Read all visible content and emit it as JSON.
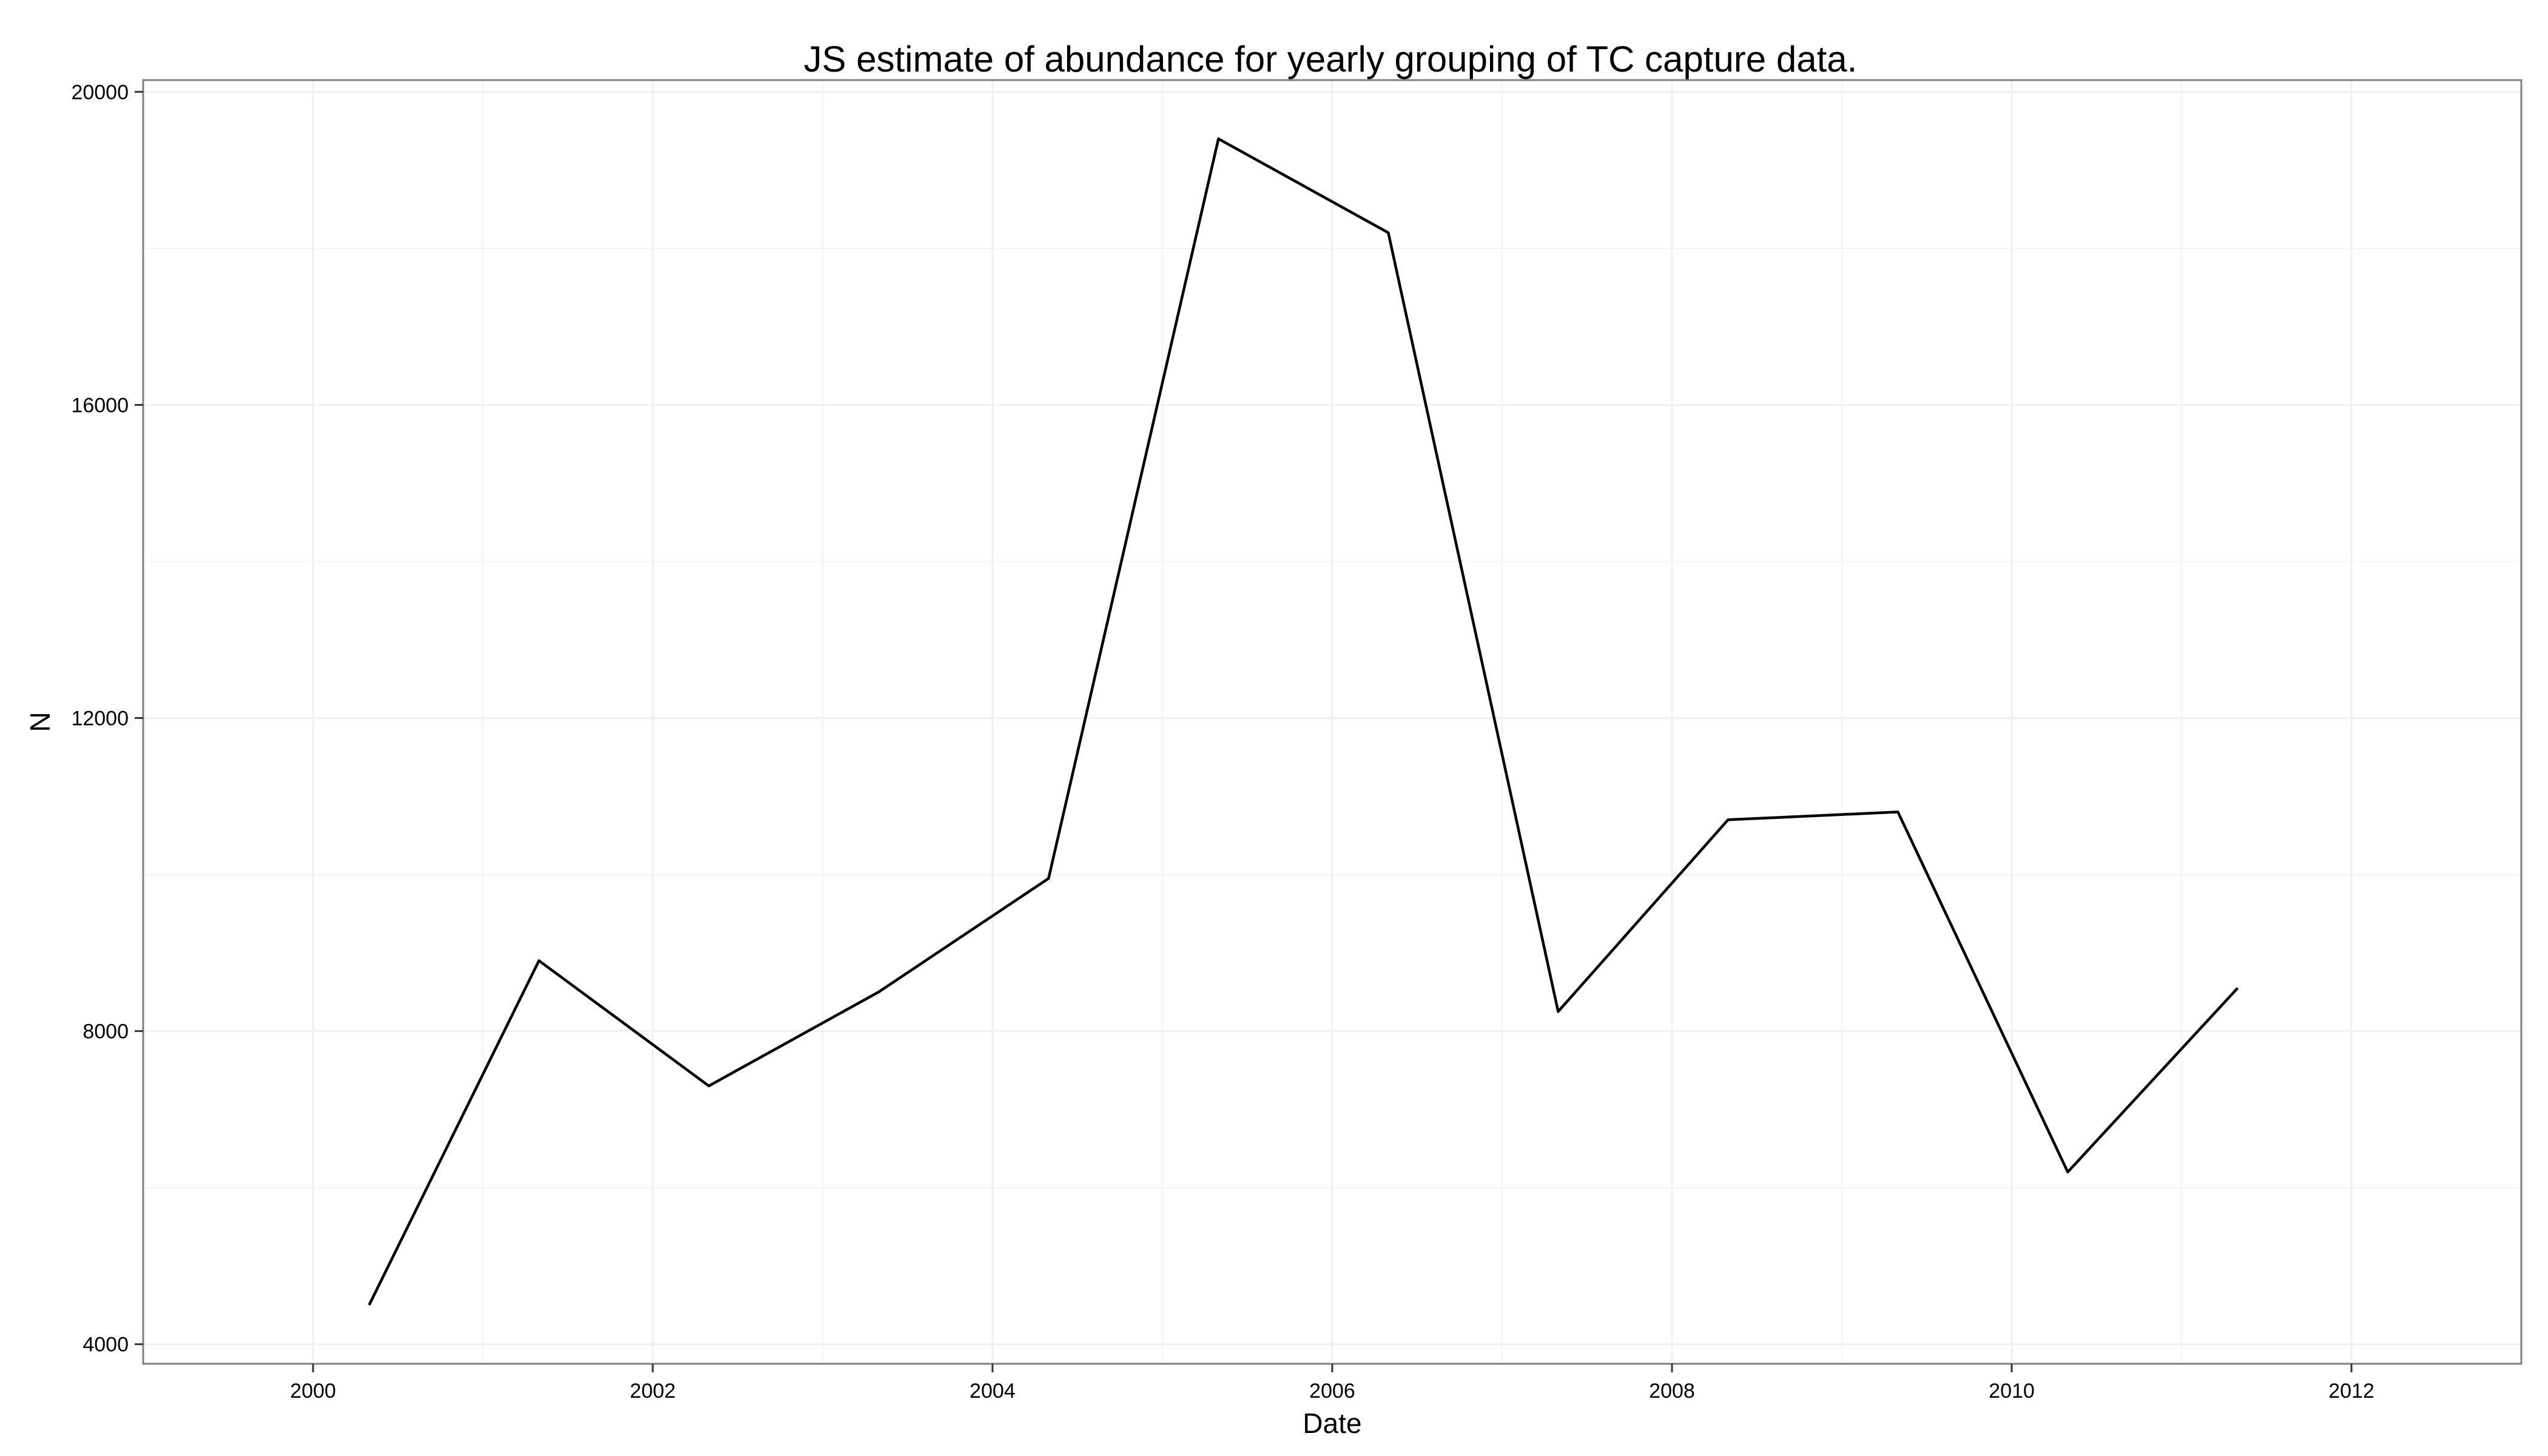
{
  "chart_data": {
    "type": "line",
    "title": "JS estimate of abundance for yearly grouping of TC capture data.",
    "xlabel": "Date",
    "ylabel": "N",
    "xlim": [
      1999,
      2013
    ],
    "ylim": [
      3750,
      20150
    ],
    "x_ticks": [
      2000,
      2002,
      2004,
      2006,
      2008,
      2010,
      2012
    ],
    "y_ticks": [
      4000,
      8000,
      12000,
      16000,
      20000
    ],
    "grid": true,
    "series": [
      {
        "x": [
          2000.33,
          2001.33,
          2002.33,
          2003.33,
          2004.33,
          2005.33,
          2006.33,
          2007.33,
          2008.33,
          2009.33,
          2010.33,
          2011.33
        ],
        "values": [
          4500,
          8900,
          7300,
          8500,
          9950,
          19400,
          18200,
          8250,
          10700,
          10800,
          6200,
          8550
        ]
      }
    ]
  },
  "colors": {
    "line": "#000000",
    "grid": "#f0f0f0",
    "panel_border": "#7f7f7f",
    "background": "#ffffff"
  }
}
